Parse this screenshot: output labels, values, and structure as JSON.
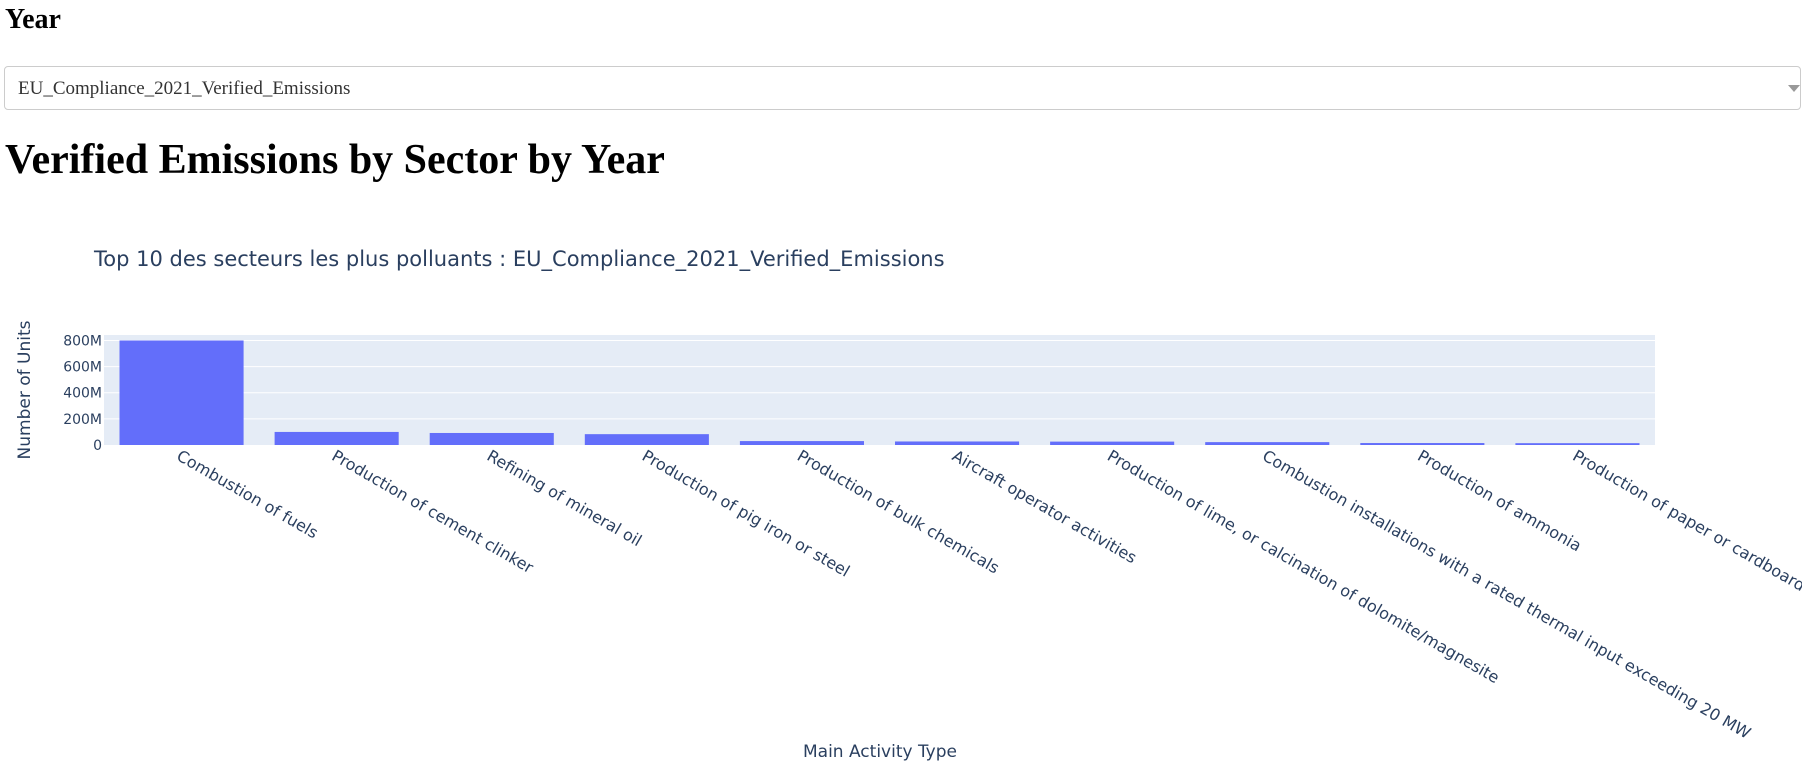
{
  "header": {
    "year_label": "Year"
  },
  "dropdown": {
    "selected": "EU_Compliance_2021_Verified_Emissions"
  },
  "page": {
    "title": "Verified Emissions by Sector by Year"
  },
  "colors": {
    "bar": "#636efa",
    "plot_bg": "#e5ecf6",
    "grid": "#ffffff",
    "text": "#2a3f5f"
  },
  "chart_data": {
    "type": "bar",
    "title": "Top 10 des secteurs les plus polluants : EU_Compliance_2021_Verified_Emissions",
    "xlabel": "Main Activity Type",
    "ylabel": "Number of Units",
    "categories": [
      "Combustion of fuels",
      "Production of cement clinker",
      "Refining of mineral oil",
      "Production of pig iron or steel",
      "Production of bulk chemicals",
      "Aircraft operator activities",
      "Production of lime, or calcination of dolomite/magnesite",
      "Combustion installations with a rated thermal input exceeding 20 MW",
      "Production of ammonia",
      "Production of paper or cardboard"
    ],
    "values": [
      800000000,
      100000000,
      92000000,
      83000000,
      30000000,
      27000000,
      26000000,
      22000000,
      15000000,
      14000000
    ],
    "yticks": [
      0,
      200000000,
      400000000,
      600000000,
      800000000
    ],
    "ytick_labels": [
      "0",
      "200M",
      "400M",
      "600M",
      "800M"
    ],
    "ylim": [
      0,
      842000000
    ],
    "grid": true
  }
}
